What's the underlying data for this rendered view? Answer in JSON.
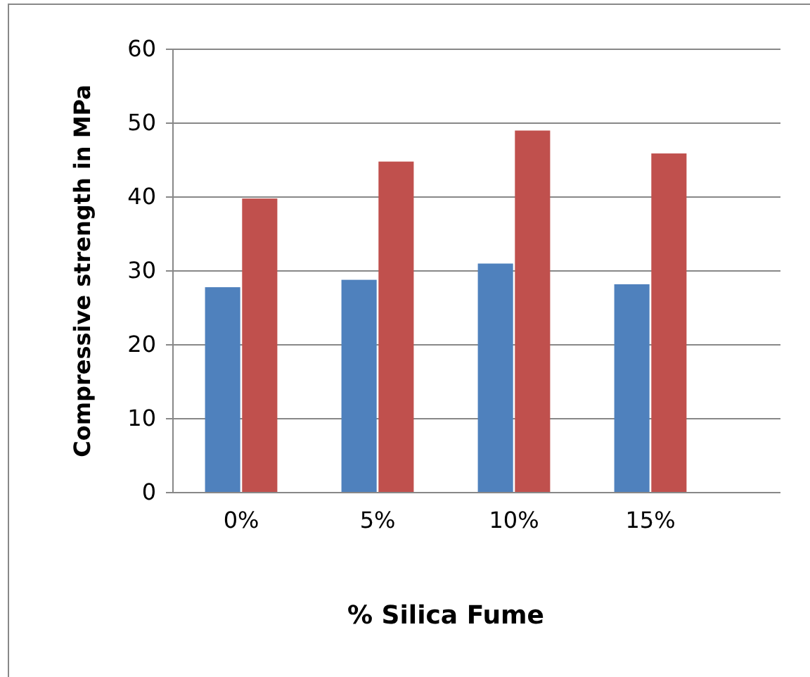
{
  "chart_data": {
    "type": "bar",
    "xlabel": "% Silica Fume",
    "ylabel": "Compressive strength in MPa",
    "categories": [
      "0%",
      "5%",
      "10%",
      "15%"
    ],
    "series": [
      {
        "color": "#4f81bd",
        "values": [
          27.8,
          28.8,
          31.0,
          28.2
        ]
      },
      {
        "color": "#c0504d",
        "values": [
          39.8,
          44.8,
          49.0,
          45.9
        ]
      }
    ],
    "ylim": [
      0,
      60
    ],
    "yticks": [
      0,
      10,
      20,
      30,
      40,
      50,
      60
    ],
    "grid": "y"
  }
}
